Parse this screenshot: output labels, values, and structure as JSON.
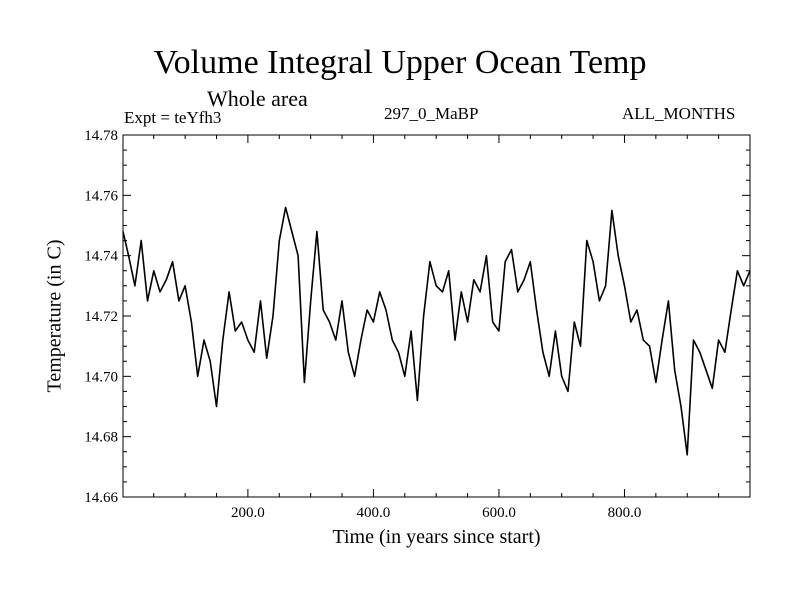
{
  "chart_data": {
    "type": "line",
    "title": "Volume Integral Upper Ocean Temp",
    "subtitle": "Whole area",
    "annotations": {
      "experiment": "Expt = teYfh3",
      "run": "297_0_MaBP",
      "months": "ALL_MONTHS"
    },
    "xlabel": "Time (in years since start)",
    "ylabel": "Temperature (in C)",
    "xlim": [
      1,
      1000
    ],
    "ylim": [
      14.66,
      14.78
    ],
    "x_ticks": [
      200,
      400,
      600,
      800
    ],
    "x_tick_labels": [
      "200.0",
      "400.0",
      "600.0",
      "800.0"
    ],
    "y_ticks": [
      14.66,
      14.68,
      14.7,
      14.72,
      14.74,
      14.76,
      14.78
    ],
    "y_tick_labels": [
      "14.66",
      "14.68",
      "14.70",
      "14.72",
      "14.74",
      "14.76",
      "14.78"
    ],
    "grid": false,
    "series": [
      {
        "name": "Volume Integral Upper Ocean Temp",
        "x": [
          1,
          10,
          20,
          30,
          40,
          50,
          60,
          70,
          80,
          90,
          100,
          110,
          120,
          130,
          140,
          150,
          160,
          170,
          180,
          190,
          200,
          210,
          220,
          230,
          240,
          250,
          260,
          270,
          280,
          290,
          300,
          310,
          320,
          330,
          340,
          350,
          360,
          370,
          380,
          390,
          400,
          410,
          420,
          430,
          440,
          450,
          460,
          470,
          480,
          490,
          500,
          510,
          520,
          530,
          540,
          550,
          560,
          570,
          580,
          590,
          600,
          610,
          620,
          630,
          640,
          650,
          660,
          670,
          680,
          690,
          700,
          710,
          720,
          730,
          740,
          750,
          760,
          770,
          780,
          790,
          800,
          810,
          820,
          830,
          840,
          850,
          860,
          870,
          880,
          890,
          900,
          910,
          920,
          930,
          940,
          950,
          960,
          970,
          980,
          990,
          1000
        ],
        "values": [
          14.748,
          14.74,
          14.73,
          14.745,
          14.725,
          14.735,
          14.728,
          14.732,
          14.738,
          14.725,
          14.73,
          14.718,
          14.7,
          14.712,
          14.705,
          14.69,
          14.712,
          14.728,
          14.715,
          14.718,
          14.712,
          14.708,
          14.725,
          14.706,
          14.72,
          14.745,
          14.756,
          14.748,
          14.74,
          14.698,
          14.725,
          14.748,
          14.722,
          14.718,
          14.712,
          14.725,
          14.708,
          14.7,
          14.712,
          14.722,
          14.718,
          14.728,
          14.722,
          14.712,
          14.708,
          14.7,
          14.715,
          14.692,
          14.72,
          14.738,
          14.73,
          14.728,
          14.735,
          14.712,
          14.728,
          14.718,
          14.732,
          14.728,
          14.74,
          14.718,
          14.715,
          14.738,
          14.742,
          14.728,
          14.732,
          14.738,
          14.722,
          14.708,
          14.7,
          14.715,
          14.7,
          14.695,
          14.718,
          14.71,
          14.745,
          14.738,
          14.725,
          14.73,
          14.755,
          14.74,
          14.73,
          14.718,
          14.722,
          14.712,
          14.71,
          14.698,
          14.712,
          14.725,
          14.702,
          14.69,
          14.674,
          14.712,
          14.708,
          14.702,
          14.696,
          14.712,
          14.708,
          14.722,
          14.735,
          14.73,
          14.735
        ]
      }
    ]
  },
  "colors": {
    "line": "#000000",
    "axis": "#000000",
    "background": "#ffffff"
  }
}
